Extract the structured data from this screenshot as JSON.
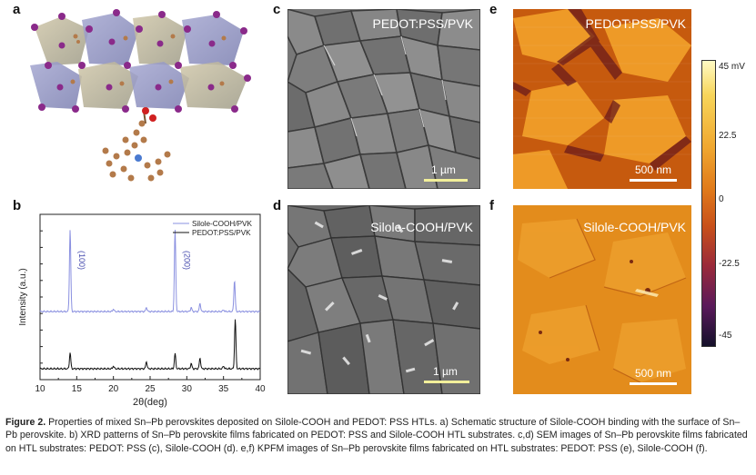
{
  "panels": {
    "a": {
      "letter": "a"
    },
    "b": {
      "letter": "b"
    },
    "c": {
      "letter": "c",
      "label": "PEDOT:PSS/PVK",
      "scale": "1 µm"
    },
    "d": {
      "letter": "d",
      "label": "Silole-COOH/PVK",
      "scale": "1 µm"
    },
    "e": {
      "letter": "e",
      "label": "PEDOT:PSS/PVK",
      "scale": "500 nm"
    },
    "f": {
      "letter": "f",
      "label": "Silole-COOH/PVK",
      "scale": "500 nm"
    }
  },
  "colorbar": {
    "ticks": [
      "45 mV",
      "22.5",
      "0",
      "-22.5",
      "-45"
    ]
  },
  "chart_data": {
    "type": "line",
    "xlabel": "2θ(deg)",
    "ylabel": "Intensity (a.u.)",
    "xlim": [
      10,
      40
    ],
    "xticks": [
      "10",
      "15",
      "20",
      "25",
      "30",
      "35",
      "40"
    ],
    "legend_position": "top-right",
    "peak_annotations": [
      {
        "text": "(100)",
        "x": 14.1
      },
      {
        "text": "(200)",
        "x": 28.4
      }
    ],
    "series": [
      {
        "name": "Silole-COOH/PVK",
        "color": "#8a90e0",
        "peaks": [
          {
            "x": 14.1,
            "h": 1.0
          },
          {
            "x": 20.0,
            "h": 0.03
          },
          {
            "x": 24.5,
            "h": 0.05
          },
          {
            "x": 28.4,
            "h": 1.0
          },
          {
            "x": 30.6,
            "h": 0.05
          },
          {
            "x": 31.8,
            "h": 0.1
          },
          {
            "x": 35.0,
            "h": 0.02
          },
          {
            "x": 36.5,
            "h": 0.38
          }
        ]
      },
      {
        "name": "PEDOT:PSS/PVK",
        "color": "#111111",
        "peaks": [
          {
            "x": 14.1,
            "h": 0.18
          },
          {
            "x": 20.0,
            "h": 0.03
          },
          {
            "x": 24.5,
            "h": 0.08
          },
          {
            "x": 28.4,
            "h": 0.17
          },
          {
            "x": 30.6,
            "h": 0.06
          },
          {
            "x": 31.8,
            "h": 0.12
          },
          {
            "x": 35.0,
            "h": 0.03
          },
          {
            "x": 36.6,
            "h": 0.56
          }
        ]
      }
    ]
  },
  "caption": {
    "fig": "Figure 2.",
    "text": " Properties of mixed Sn–Pb perovskites deposited on Silole-COOH and PEDOT: PSS HTLs. a) Schematic structure of Silole-COOH binding with the surface of Sn–Pb perovskite. b) XRD patterns of Sn–Pb perovskite films fabricated on PEDOT: PSS and Silole-COOH HTL substrates. c,d) SEM images of Sn–Pb perovskite films fabricated on HTL substrates: PEDOT: PSS (c), Silole-COOH (d). e,f) KPFM images of Sn–Pb perovskite films fabricated on HTL substrates: PEDOT: PSS (e), Silole-COOH (f)."
  }
}
